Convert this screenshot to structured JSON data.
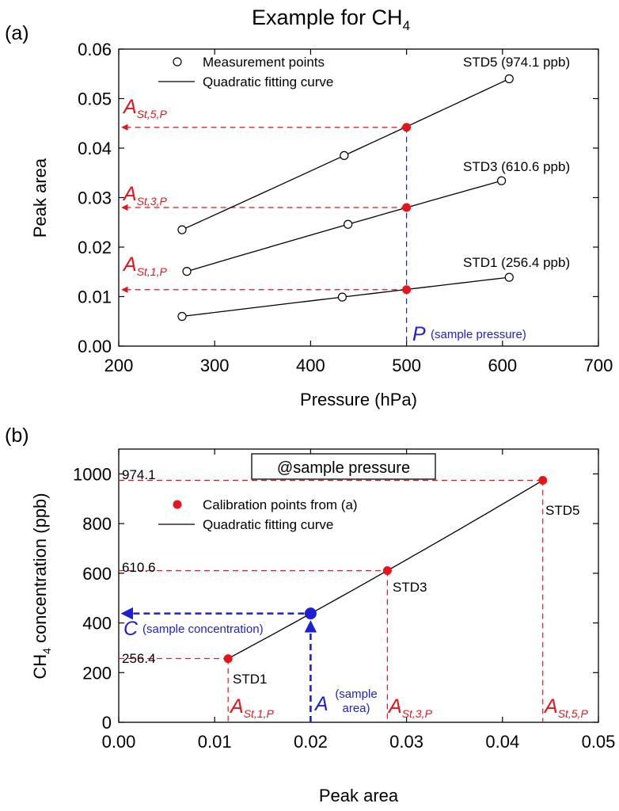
{
  "title": "Example for CH",
  "title_sub": "4",
  "colors": {
    "red": "#e8141c",
    "blue": "#1e1ed2",
    "black": "#000000"
  },
  "panel_a": {
    "label": "(a)",
    "xlabel": "Pressure (hPa)",
    "ylabel": "Peak area",
    "xticks": [
      "200",
      "300",
      "400",
      "500",
      "600",
      "700"
    ],
    "yticks": [
      "0.00",
      "0.01",
      "0.02",
      "0.03",
      "0.04",
      "0.05",
      "0.06"
    ],
    "legend": {
      "markers": "Measurement points",
      "curve": "Quadratic fitting curve"
    },
    "sample_pressure": {
      "symbol": "P",
      "text": "(sample pressure)"
    },
    "a_labels": [
      {
        "main": "A",
        "sub": "St,5,P"
      },
      {
        "main": "A",
        "sub": "St,3,P"
      },
      {
        "main": "A",
        "sub": "St,1,P"
      }
    ]
  },
  "panel_b": {
    "label": "(b)",
    "xlabel": "Peak area",
    "ylabel_main": "CH",
    "ylabel_sub": "4",
    "ylabel_rest": " concentration (ppb)",
    "xticks": [
      "0.00",
      "0.01",
      "0.02",
      "0.03",
      "0.04",
      "0.05"
    ],
    "yticks": [
      "0",
      "200",
      "400",
      "600",
      "800",
      "1000"
    ],
    "box_title": "@sample pressure",
    "legend": {
      "points": "Calibration points from (a)",
      "curve": "Quadratic fitting curve"
    },
    "concentration_labels": [
      "974.1",
      "610.6",
      "256.4"
    ],
    "std_labels": [
      "STD5",
      "STD3",
      "STD1"
    ],
    "sample_concentration": {
      "symbol": "C",
      "text": "(sample concentration)"
    },
    "sample_area": {
      "symbol": "A",
      "text1": "(sample",
      "text2": "area)"
    },
    "a_labels": [
      {
        "main": "A",
        "sub": "St,1,P"
      },
      {
        "main": "A",
        "sub": "St,3,P"
      },
      {
        "main": "A",
        "sub": "St,5,P"
      }
    ]
  },
  "chart_data": [
    {
      "type": "line",
      "panel": "a",
      "xlabel": "Pressure (hPa)",
      "ylabel": "Peak area",
      "xlim": [
        200,
        700
      ],
      "ylim": [
        0,
        0.06
      ],
      "series": [
        {
          "name": "STD5 (974.1 ppb)",
          "x": [
            266,
            435,
            607
          ],
          "y": [
            0.0235,
            0.0385,
            0.054
          ]
        },
        {
          "name": "STD3 (610.6 ppb)",
          "x": [
            271,
            439,
            599
          ],
          "y": [
            0.0151,
            0.0246,
            0.0334
          ]
        },
        {
          "name": "STD1 (256.4 ppb)",
          "x": [
            266,
            433,
            607
          ],
          "y": [
            0.006,
            0.0099,
            0.0139
          ]
        }
      ],
      "sample_pressure": 500,
      "interpolated": [
        0.0442,
        0.028,
        0.0114
      ]
    },
    {
      "type": "line",
      "panel": "b",
      "xlabel": "Peak area",
      "ylabel": "CH4 concentration (ppb)",
      "xlim": [
        0,
        0.05
      ],
      "ylim": [
        0,
        1100
      ],
      "points": [
        {
          "x": 0.0114,
          "y": 256.4
        },
        {
          "x": 0.028,
          "y": 610.6
        },
        {
          "x": 0.0442,
          "y": 974.1
        }
      ],
      "sample": {
        "x": 0.02,
        "y": 438
      }
    }
  ]
}
